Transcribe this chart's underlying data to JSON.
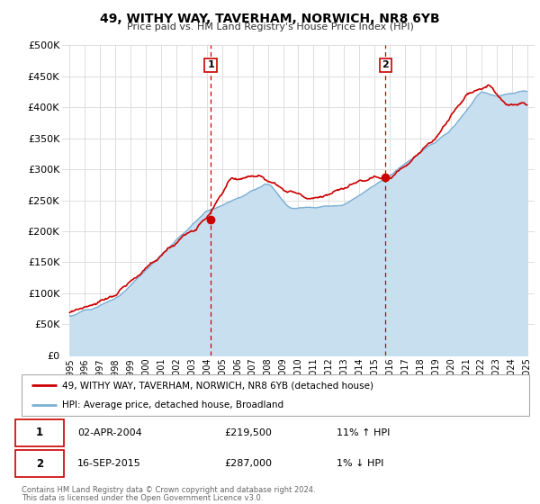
{
  "title": "49, WITHY WAY, TAVERHAM, NORWICH, NR8 6YB",
  "subtitle": "Price paid vs. HM Land Registry's House Price Index (HPI)",
  "legend_line1": "49, WITHY WAY, TAVERHAM, NORWICH, NR8 6YB (detached house)",
  "legend_line2": "HPI: Average price, detached house, Broadland",
  "annotation1_label": "1",
  "annotation1_date": "02-APR-2004",
  "annotation1_price": "£219,500",
  "annotation1_hpi": "11% ↑ HPI",
  "annotation2_label": "2",
  "annotation2_date": "16-SEP-2015",
  "annotation2_price": "£287,000",
  "annotation2_hpi": "1% ↓ HPI",
  "footer1": "Contains HM Land Registry data © Crown copyright and database right 2024.",
  "footer2": "This data is licensed under the Open Government Licence v3.0.",
  "sale1_x": 2004.25,
  "sale1_y": 219500,
  "sale2_x": 2015.71,
  "sale2_y": 287000,
  "vline1_x": 2004.25,
  "vline2_x": 2015.71,
  "price_line_color": "#cc0000",
  "hpi_line_color": "#7bafd4",
  "hpi_fill_color": "#c8dff0",
  "vline_color": "#cc0000",
  "plot_bg_color": "#ffffff",
  "grid_color": "#dddddd",
  "ylim": [
    0,
    500000
  ],
  "xlim": [
    1994.5,
    2025.5
  ],
  "yticks": [
    0,
    50000,
    100000,
    150000,
    200000,
    250000,
    300000,
    350000,
    400000,
    450000,
    500000
  ],
  "xticks": [
    1995,
    1996,
    1997,
    1998,
    1999,
    2000,
    2001,
    2002,
    2003,
    2004,
    2005,
    2006,
    2007,
    2008,
    2009,
    2010,
    2011,
    2012,
    2013,
    2014,
    2015,
    2016,
    2017,
    2018,
    2019,
    2020,
    2021,
    2022,
    2023,
    2024,
    2025
  ]
}
